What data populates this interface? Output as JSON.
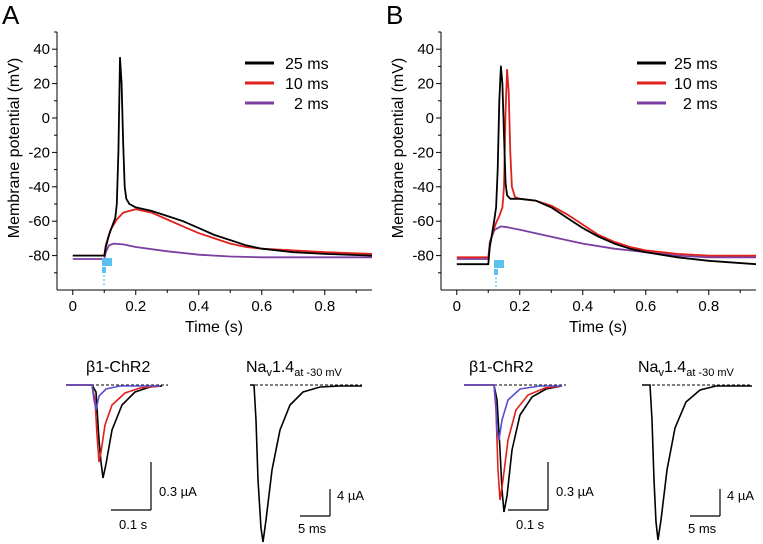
{
  "panels": [
    {
      "letter": "A",
      "ylabel": "Membrane potential (mV)",
      "xlabel": "Time (s)",
      "light_pulse_color": "#5bc2f0",
      "legend": [
        {
          "label": "25 ms",
          "color": "#000000"
        },
        {
          "label": "10 ms",
          "color": "#e0201b"
        },
        {
          "label": "2 ms",
          "color": "#7a3fa0"
        }
      ],
      "insets": {
        "left_title_html": "β1-ChR2",
        "right_title_main": "Na",
        "right_title_sub1": "v",
        "right_title_mid": "1.4",
        "right_title_sub2": "at -30 mV",
        "left_scale_y": "0.3 µA",
        "left_scale_x": "0.1 s",
        "right_scale_y": "4 µA",
        "right_scale_x": "5 ms"
      }
    },
    {
      "letter": "B",
      "ylabel": "Membrane potential (mV)",
      "xlabel": "Time (s)",
      "light_pulse_color": "#5bc2f0",
      "legend": [
        {
          "label": "25 ms",
          "color": "#000000"
        },
        {
          "label": "10 ms",
          "color": "#e0201b"
        },
        {
          "label": "2 ms",
          "color": "#7a3fa0"
        }
      ],
      "insets": {
        "left_title_html": "β1-ChR2",
        "right_title_main": "Na",
        "right_title_sub1": "v",
        "right_title_mid": "1.4",
        "right_title_sub2": "at -30 mV",
        "left_scale_y": "0.3 µA",
        "left_scale_x": "0.1 s",
        "right_scale_y": "4 µA",
        "right_scale_x": "5 ms"
      }
    }
  ],
  "chart_data": [
    {
      "type": "line",
      "title": "",
      "xlabel": "Time (s)",
      "ylabel": "Membrane potential (mV)",
      "xlim": [
        -0.05,
        0.95
      ],
      "ylim": [
        -100,
        50
      ],
      "xticks": [
        0,
        0.2,
        0.4,
        0.6,
        0.8
      ],
      "xtick_labels": [
        "0",
        "0.2",
        "0.4",
        "0.6",
        "0.8"
      ],
      "yticks": [
        40,
        20,
        0,
        -20,
        -40,
        -60,
        -80
      ],
      "ytick_labels": [
        "40",
        "20",
        "0",
        "-20",
        "-40",
        "-60",
        "-80"
      ],
      "legend_position": "top-right",
      "series": [
        {
          "name": "25 ms",
          "color": "#000000",
          "x": [
            0,
            0.09,
            0.1,
            0.105,
            0.115,
            0.125,
            0.135,
            0.14,
            0.145,
            0.15,
            0.155,
            0.16,
            0.165,
            0.17,
            0.18,
            0.2,
            0.25,
            0.3,
            0.35,
            0.4,
            0.45,
            0.5,
            0.55,
            0.6,
            0.7,
            0.8,
            0.95
          ],
          "y": [
            -80,
            -80,
            -80,
            -75,
            -68,
            -63,
            -58,
            -50,
            -20,
            35,
            20,
            -15,
            -40,
            -47,
            -50,
            -52,
            -54,
            -57,
            -60,
            -64,
            -68,
            -71,
            -74,
            -76,
            -78,
            -79,
            -80
          ]
        },
        {
          "name": "10 ms",
          "color": "#e0201b",
          "x": [
            0,
            0.09,
            0.1,
            0.105,
            0.12,
            0.14,
            0.16,
            0.2,
            0.25,
            0.3,
            0.35,
            0.4,
            0.45,
            0.5,
            0.55,
            0.6,
            0.7,
            0.8,
            0.95
          ],
          "y": [
            -80,
            -80,
            -80,
            -74,
            -65,
            -59,
            -55,
            -53,
            -55,
            -59,
            -63,
            -67,
            -70,
            -73,
            -75,
            -76,
            -77,
            -78,
            -79
          ]
        },
        {
          "name": "2 ms",
          "color": "#7a3fa0",
          "x": [
            0,
            0.09,
            0.1,
            0.105,
            0.115,
            0.13,
            0.16,
            0.2,
            0.3,
            0.4,
            0.5,
            0.6,
            0.7,
            0.8,
            0.95
          ],
          "y": [
            -82,
            -82,
            -82,
            -78,
            -74,
            -73,
            -73.5,
            -75,
            -77.5,
            -79.5,
            -80.5,
            -81,
            -81,
            -81,
            -81
          ]
        }
      ]
    },
    {
      "type": "line",
      "title": "",
      "xlabel": "Time (s)",
      "ylabel": "Membrane potential (mV)",
      "xlim": [
        -0.05,
        0.95
      ],
      "ylim": [
        -100,
        50
      ],
      "xticks": [
        0,
        0.2,
        0.4,
        0.6,
        0.8
      ],
      "xtick_labels": [
        "0",
        "0.2",
        "0.4",
        "0.6",
        "0.8"
      ],
      "yticks": [
        40,
        20,
        0,
        -20,
        -40,
        -60,
        -80
      ],
      "ytick_labels": [
        "40",
        "20",
        "0",
        "-20",
        "-40",
        "-60",
        "-80"
      ],
      "legend_position": "top-right",
      "series": [
        {
          "name": "25 ms",
          "color": "#000000",
          "x": [
            0,
            0.09,
            0.1,
            0.105,
            0.115,
            0.12,
            0.125,
            0.13,
            0.135,
            0.14,
            0.145,
            0.15,
            0.155,
            0.16,
            0.17,
            0.2,
            0.25,
            0.3,
            0.35,
            0.4,
            0.45,
            0.5,
            0.55,
            0.6,
            0.7,
            0.8,
            0.95
          ],
          "y": [
            -85,
            -85,
            -85,
            -75,
            -64,
            -58,
            -52,
            -30,
            10,
            30,
            20,
            -10,
            -38,
            -45,
            -47,
            -47,
            -48,
            -52,
            -58,
            -64,
            -69,
            -73,
            -76,
            -78,
            -81,
            -83,
            -85
          ]
        },
        {
          "name": "10 ms",
          "color": "#e0201b",
          "x": [
            0,
            0.09,
            0.1,
            0.105,
            0.115,
            0.125,
            0.135,
            0.145,
            0.15,
            0.155,
            0.16,
            0.165,
            0.17,
            0.175,
            0.185,
            0.2,
            0.25,
            0.3,
            0.35,
            0.4,
            0.45,
            0.5,
            0.55,
            0.6,
            0.7,
            0.8,
            0.95
          ],
          "y": [
            -81,
            -81,
            -81,
            -74,
            -66,
            -61,
            -57,
            -52,
            -40,
            5,
            28,
            15,
            -20,
            -40,
            -46,
            -47,
            -48,
            -51,
            -56,
            -62,
            -68,
            -72,
            -75,
            -77,
            -79,
            -80,
            -80
          ]
        },
        {
          "name": "2 ms",
          "color": "#7a3fa0",
          "x": [
            0,
            0.09,
            0.1,
            0.105,
            0.12,
            0.14,
            0.16,
            0.2,
            0.3,
            0.4,
            0.5,
            0.6,
            0.7,
            0.8,
            0.95
          ],
          "y": [
            -82,
            -82,
            -82,
            -72,
            -65,
            -63,
            -63.5,
            -65,
            -69,
            -73,
            -76,
            -78,
            -80,
            -81,
            -81
          ]
        }
      ]
    }
  ]
}
